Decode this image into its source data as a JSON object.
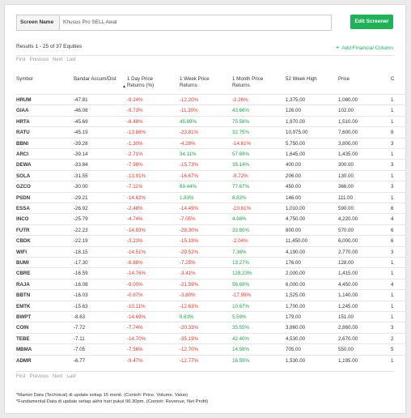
{
  "screen": {
    "label": "Screen Name",
    "name": "Khusus Pro SELL Awal",
    "edit_button": "Edit Screener"
  },
  "results_text": "Results 1 - 25 of 37 Equities",
  "add_financial_column": "Add Financial Column",
  "pager": {
    "first": "First",
    "previous": "Previous",
    "next": "Next",
    "last": "Last"
  },
  "columns": [
    "Symbol",
    "Bandar Accum/Dist",
    "1 Day Price Returns (%)",
    "1 Week Price Returns",
    "1 Month Price Returns",
    "52 Week High",
    "Price",
    "C"
  ],
  "rows": [
    {
      "symbol": "HRUM",
      "bandar": "-47.81",
      "d1": "-9.24%",
      "w1": "-12.20%",
      "m1": "-2.26%",
      "high52": "1,375.00",
      "price": "1,080.00",
      "c": "1"
    },
    {
      "symbol": "GIAA",
      "bandar": "-46.08",
      "d1": "-9.73%",
      "w1": "-11.30%",
      "m1": "43.66%",
      "high52": "126.00",
      "price": "102.00",
      "c": "1"
    },
    {
      "symbol": "HRTA",
      "bandar": "-45.69",
      "d1": "-8.48%",
      "w1": "45.89%",
      "m1": "75.58%",
      "high52": "1,970.00",
      "price": "1,510.00",
      "c": "1"
    },
    {
      "symbol": "RATU",
      "bandar": "-45.19",
      "d1": "-13.88%",
      "w1": "-23.81%",
      "m1": "32.75%",
      "high52": "10,975.00",
      "price": "7,600.00",
      "c": "8"
    },
    {
      "symbol": "BBNI",
      "bandar": "-39.28",
      "d1": "-1.30%",
      "w1": "-4.28%",
      "m1": "-14.61%",
      "high52": "5,750.00",
      "price": "3,800.00",
      "c": "3"
    },
    {
      "symbol": "ARCI",
      "bandar": "-39.14",
      "d1": "-2.71%",
      "w1": "34.11%",
      "m1": "57.69%",
      "high52": "1,645.00",
      "price": "1,435.00",
      "c": "1"
    },
    {
      "symbol": "DEWA",
      "bandar": "-33.84",
      "d1": "-7.98%",
      "w1": "-15.73%",
      "m1": "35.14%",
      "high52": "400.00",
      "price": "300.00",
      "c": "3"
    },
    {
      "symbol": "SOLA",
      "bandar": "-31.55",
      "d1": "-13.91%",
      "w1": "-16.67%",
      "m1": "-9.72%",
      "high52": "206.00",
      "price": "130.00",
      "c": "1"
    },
    {
      "symbol": "GZCO",
      "bandar": "-30.00",
      "d1": "-7.11%",
      "w1": "69.44%",
      "m1": "77.67%",
      "high52": "450.00",
      "price": "366.00",
      "c": "3"
    },
    {
      "symbol": "PSDN",
      "bandar": "-29.21",
      "d1": "-14.62%",
      "w1": "1.83%",
      "m1": "8.82%",
      "high52": "146.00",
      "price": "111.00",
      "c": "1"
    },
    {
      "symbol": "ESSA",
      "bandar": "-26.92",
      "d1": "-2.48%",
      "w1": "-14.49%",
      "m1": "-10.61%",
      "high52": "1,010.00",
      "price": "590.00",
      "c": "6"
    },
    {
      "symbol": "INCO",
      "bandar": "-25.79",
      "d1": "-4.74%",
      "w1": "-7.05%",
      "m1": "4.98%",
      "high52": "4,750.00",
      "price": "4,220.00",
      "c": "4"
    },
    {
      "symbol": "FUTR",
      "bandar": "-22.23",
      "d1": "-14.93%",
      "w1": "-28.30%",
      "m1": "33.80%",
      "high52": "800.00",
      "price": "570.00",
      "c": "6"
    },
    {
      "symbol": "CBDK",
      "bandar": "-22.19",
      "d1": "-3.23%",
      "w1": "-15.19%",
      "m1": "-2.04%",
      "high52": "11,450.00",
      "price": "6,000.00",
      "c": "6"
    },
    {
      "symbol": "WIFI",
      "bandar": "-18.15",
      "d1": "-14.51%",
      "w1": "-29.52%",
      "m1": "7.36%",
      "high52": "4,190.00",
      "price": "2,770.00",
      "c": "3"
    },
    {
      "symbol": "BUMI",
      "bandar": "-17.30",
      "d1": "-8.88%",
      "w1": "-7.25%",
      "m1": "13.27%",
      "high52": "176.00",
      "price": "128.00",
      "c": "1"
    },
    {
      "symbol": "CBRE",
      "bandar": "-16.59",
      "d1": "-14.76%",
      "w1": "-3.41%",
      "m1": "128.23%",
      "high52": "2,000.00",
      "price": "1,415.00",
      "c": "1"
    },
    {
      "symbol": "RAJA",
      "bandar": "-16.08",
      "d1": "-9.00%",
      "w1": "-21.59%",
      "m1": "56.69%",
      "high52": "6,000.00",
      "price": "4,450.00",
      "c": "4"
    },
    {
      "symbol": "BBTN",
      "bandar": "-16.03",
      "d1": "-0.87%",
      "w1": "-3.80%",
      "m1": "-17.99%",
      "high52": "1,525.00",
      "price": "1,140.00",
      "c": "1"
    },
    {
      "symbol": "EMTK",
      "bandar": "-15.63",
      "d1": "-10.11%",
      "w1": "-12.63%",
      "m1": "10.67%",
      "high52": "1,700.00",
      "price": "1,245.00",
      "c": "1"
    },
    {
      "symbol": "BWPT",
      "bandar": "-8.63",
      "d1": "-14.69%",
      "w1": "8.63%",
      "m1": "5.59%",
      "high52": "179.00",
      "price": "151.00",
      "c": "1"
    },
    {
      "symbol": "COIN",
      "bandar": "-7.72",
      "d1": "-7.74%",
      "w1": "-20.33%",
      "m1": "35.55%",
      "high52": "3,860.00",
      "price": "2,860.00",
      "c": "3"
    },
    {
      "symbol": "TEBE",
      "bandar": "-7.11",
      "d1": "-14.70%",
      "w1": "-35.19%",
      "m1": "42.40%",
      "high52": "4,530.00",
      "price": "2,670.00",
      "c": "2"
    },
    {
      "symbol": "MBMA",
      "bandar": "-7.05",
      "d1": "-7.56%",
      "w1": "-12.70%",
      "m1": "14.58%",
      "high52": "705.00",
      "price": "550.00",
      "c": "5"
    },
    {
      "symbol": "ADMR",
      "bandar": "-6.77",
      "d1": "-9.47%",
      "w1": "-12.77%",
      "m1": "16.59%",
      "high52": "1,530.00",
      "price": "1,195.00",
      "c": "1"
    }
  ],
  "notes": [
    "*Market Data (Technical) di update setiap 15 menit. (Contoh: Price, Volume, Value)",
    "*Fundamental Data di update setiap akhir hari pukul 06.30pm. (Contoh: Revenue, Net Profit)"
  ],
  "colors": {
    "accent": "#20b15a",
    "negative": "#e0382e",
    "positive": "#20a64f"
  },
  "icons": {
    "add": "plus-icon",
    "sort": "sort-down-icon"
  }
}
